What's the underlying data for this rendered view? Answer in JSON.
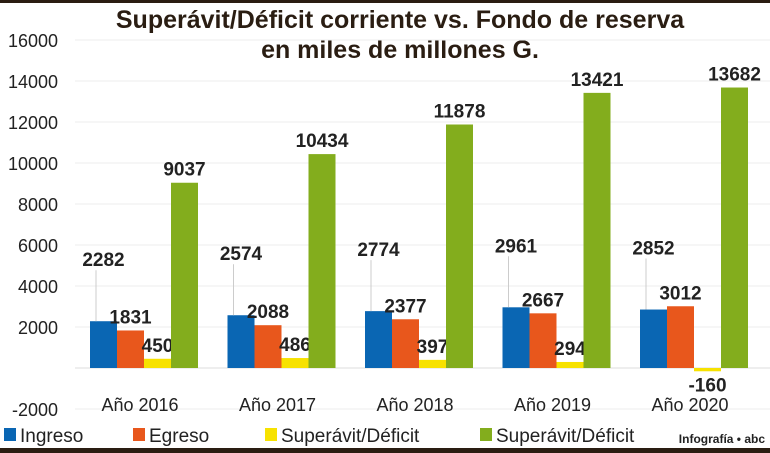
{
  "chart_data": {
    "type": "bar",
    "title": "Superávit/Déficit corriente vs. Fondo de reserva",
    "subtitle": "en miles de millones G.",
    "categories": [
      "Año 2016",
      "Año 2017",
      "Año 2018",
      "Año 2019",
      "Año 2020"
    ],
    "ylim": [
      -2000,
      16000
    ],
    "yticks": [
      -2000,
      2000,
      4000,
      6000,
      8000,
      10000,
      12000,
      14000,
      16000
    ],
    "grid": true,
    "legend_position": "bottom",
    "series": [
      {
        "name": "Ingreso",
        "color": "#0a66b3",
        "values": [
          2282,
          2574,
          2774,
          2961,
          2852
        ]
      },
      {
        "name": "Egreso",
        "color": "#e8571c",
        "values": [
          1831,
          2088,
          2377,
          2667,
          3012
        ]
      },
      {
        "name": "Superávit/Déficit",
        "color": "#f7e200",
        "values": [
          450,
          486,
          397,
          294,
          -160
        ]
      },
      {
        "name": "Superávit/Déficit",
        "color": "#83ad1d",
        "values": [
          9037,
          10434,
          11878,
          13421,
          13682
        ]
      }
    ],
    "negative_color": "#d8101a"
  },
  "credit": "Infografía • abc"
}
